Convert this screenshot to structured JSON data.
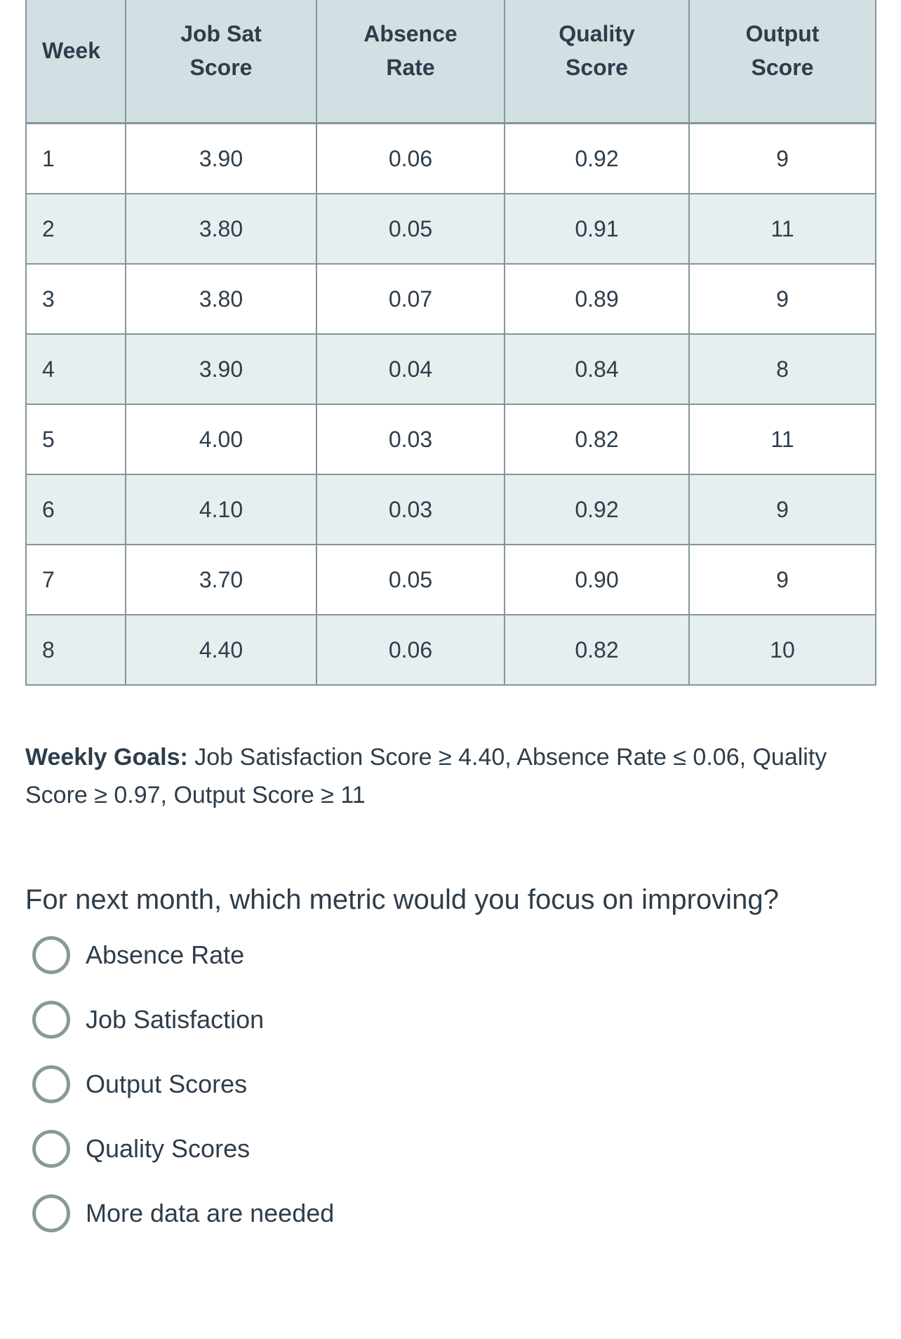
{
  "colors": {
    "text": "#2e3d4b",
    "table_border": "#839699",
    "header_bg": "#d3e0e3",
    "zebra_row_bg": "#e7eeef",
    "radio_border": "#879a99",
    "page_bg": "#ffffff"
  },
  "table": {
    "columns": [
      {
        "key": "week",
        "lines": [
          "Week"
        ]
      },
      {
        "key": "job_sat",
        "lines": [
          "Job Sat",
          "Score"
        ]
      },
      {
        "key": "absence",
        "lines": [
          "Absence",
          "Rate"
        ]
      },
      {
        "key": "quality",
        "lines": [
          "Quality",
          "Score"
        ]
      },
      {
        "key": "output",
        "lines": [
          "Output",
          "Score"
        ]
      }
    ],
    "rows": [
      [
        "1",
        "3.90",
        "0.06",
        "0.92",
        "9"
      ],
      [
        "2",
        "3.80",
        "0.05",
        "0.91",
        "11"
      ],
      [
        "3",
        "3.80",
        "0.07",
        "0.89",
        "9"
      ],
      [
        "4",
        "3.90",
        "0.04",
        "0.84",
        "8"
      ],
      [
        "5",
        "4.00",
        "0.03",
        "0.82",
        "11"
      ],
      [
        "6",
        "4.10",
        "0.03",
        "0.92",
        "9"
      ],
      [
        "7",
        "3.70",
        "0.05",
        "0.90",
        "9"
      ],
      [
        "8",
        "4.40",
        "0.06",
        "0.82",
        "10"
      ]
    ]
  },
  "goals": {
    "prefix": "Weekly Goals:",
    "line1": " Job Satisfaction Score ≥ 4.40, Absence Rate ≤ 0.06, Quality",
    "line2": "Score ≥ 0.97, Output Score ≥ 11"
  },
  "question": {
    "text": "For next month, which metric would you focus on improving?"
  },
  "options": [
    {
      "label": "Absence Rate"
    },
    {
      "label": "Job Satisfaction"
    },
    {
      "label": "Output Scores"
    },
    {
      "label": "Quality Scores"
    },
    {
      "label": "More data are needed"
    }
  ]
}
